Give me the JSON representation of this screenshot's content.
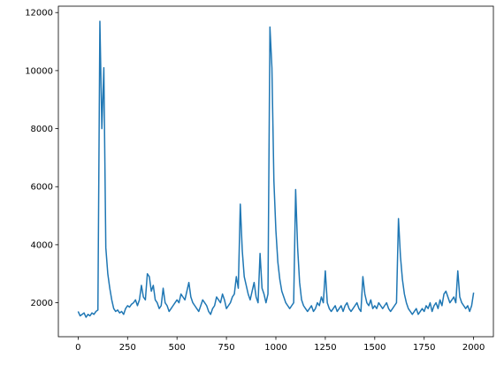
{
  "chart_data": {
    "type": "line",
    "color": "#1f77b4",
    "x": [
      0,
      10,
      20,
      30,
      40,
      50,
      60,
      70,
      80,
      90,
      100,
      110,
      120,
      130,
      140,
      150,
      160,
      170,
      180,
      190,
      200,
      210,
      220,
      230,
      240,
      250,
      260,
      270,
      280,
      290,
      300,
      310,
      320,
      330,
      340,
      350,
      360,
      370,
      380,
      390,
      400,
      410,
      420,
      430,
      440,
      450,
      460,
      470,
      480,
      490,
      500,
      510,
      520,
      530,
      540,
      550,
      560,
      570,
      580,
      590,
      600,
      610,
      620,
      630,
      640,
      650,
      660,
      670,
      680,
      690,
      700,
      710,
      720,
      730,
      740,
      750,
      760,
      770,
      780,
      790,
      800,
      810,
      820,
      830,
      840,
      850,
      860,
      870,
      880,
      890,
      900,
      910,
      920,
      930,
      940,
      950,
      960,
      970,
      980,
      990,
      1000,
      1010,
      1020,
      1030,
      1040,
      1050,
      1060,
      1070,
      1080,
      1090,
      1100,
      1110,
      1120,
      1130,
      1140,
      1150,
      1160,
      1170,
      1180,
      1190,
      1200,
      1210,
      1220,
      1230,
      1240,
      1250,
      1260,
      1270,
      1280,
      1290,
      1300,
      1310,
      1320,
      1330,
      1340,
      1350,
      1360,
      1370,
      1380,
      1390,
      1400,
      1410,
      1420,
      1430,
      1440,
      1450,
      1460,
      1470,
      1480,
      1490,
      1500,
      1510,
      1520,
      1530,
      1540,
      1550,
      1560,
      1570,
      1580,
      1590,
      1600,
      1610,
      1620,
      1630,
      1640,
      1650,
      1660,
      1670,
      1680,
      1690,
      1700,
      1710,
      1720,
      1730,
      1740,
      1750,
      1760,
      1770,
      1780,
      1790,
      1800,
      1810,
      1820,
      1830,
      1840,
      1850,
      1860,
      1870,
      1880,
      1890,
      1900,
      1910,
      1920,
      1930,
      1940,
      1950,
      1960,
      1970,
      1980,
      1990,
      2000
    ],
    "values": [
      1700,
      1550,
      1600,
      1650,
      1500,
      1600,
      1550,
      1650,
      1600,
      1700,
      1750,
      11700,
      8000,
      10100,
      3900,
      3000,
      2500,
      2100,
      1800,
      1700,
      1750,
      1650,
      1700,
      1600,
      1800,
      1900,
      1850,
      1950,
      2000,
      2100,
      1900,
      2100,
      2600,
      2200,
      2100,
      3000,
      2900,
      2400,
      2600,
      2100,
      2000,
      1800,
      1900,
      2500,
      2000,
      1900,
      1700,
      1800,
      1900,
      2000,
      2100,
      2000,
      2300,
      2200,
      2100,
      2400,
      2700,
      2200,
      2000,
      1900,
      1800,
      1700,
      1900,
      2100,
      2000,
      1900,
      1700,
      1600,
      1800,
      1900,
      2200,
      2100,
      2000,
      2300,
      2100,
      1800,
      1900,
      2000,
      2200,
      2300,
      2900,
      2500,
      5400,
      3800,
      2900,
      2600,
      2300,
      2100,
      2400,
      2700,
      2200,
      2000,
      3700,
      2500,
      2300,
      2000,
      2300,
      11500,
      10100,
      6200,
      4500,
      3400,
      2800,
      2400,
      2200,
      2000,
      1900,
      1800,
      1900,
      2000,
      5900,
      3900,
      2700,
      2100,
      1900,
      1800,
      1700,
      1800,
      1900,
      1700,
      1800,
      2000,
      1900,
      2200,
      2000,
      3100,
      2000,
      1800,
      1700,
      1800,
      1900,
      1700,
      1800,
      1900,
      1700,
      1900,
      2000,
      1800,
      1700,
      1800,
      1900,
      2000,
      1800,
      1700,
      2900,
      2300,
      2000,
      1900,
      2100,
      1800,
      1900,
      1800,
      2000,
      1900,
      1800,
      1900,
      2000,
      1800,
      1700,
      1800,
      1900,
      2000,
      4900,
      3600,
      2800,
      2300,
      2000,
      1800,
      1700,
      1600,
      1700,
      1800,
      1600,
      1700,
      1800,
      1700,
      1900,
      1800,
      2000,
      1700,
      1900,
      2000,
      1800,
      2100,
      1900,
      2300,
      2400,
      2200,
      2000,
      2100,
      2200,
      2000,
      3100,
      2200,
      2000,
      1900,
      1800,
      1900,
      1700,
      1900,
      2350
    ],
    "xlim": [
      -100,
      2100
    ],
    "ylim": [
      830,
      12220
    ],
    "xticks": [
      0,
      250,
      500,
      750,
      1000,
      1250,
      1500,
      1750,
      2000
    ],
    "yticks": [
      2000,
      4000,
      6000,
      8000,
      10000,
      12000
    ],
    "grid": false
  }
}
